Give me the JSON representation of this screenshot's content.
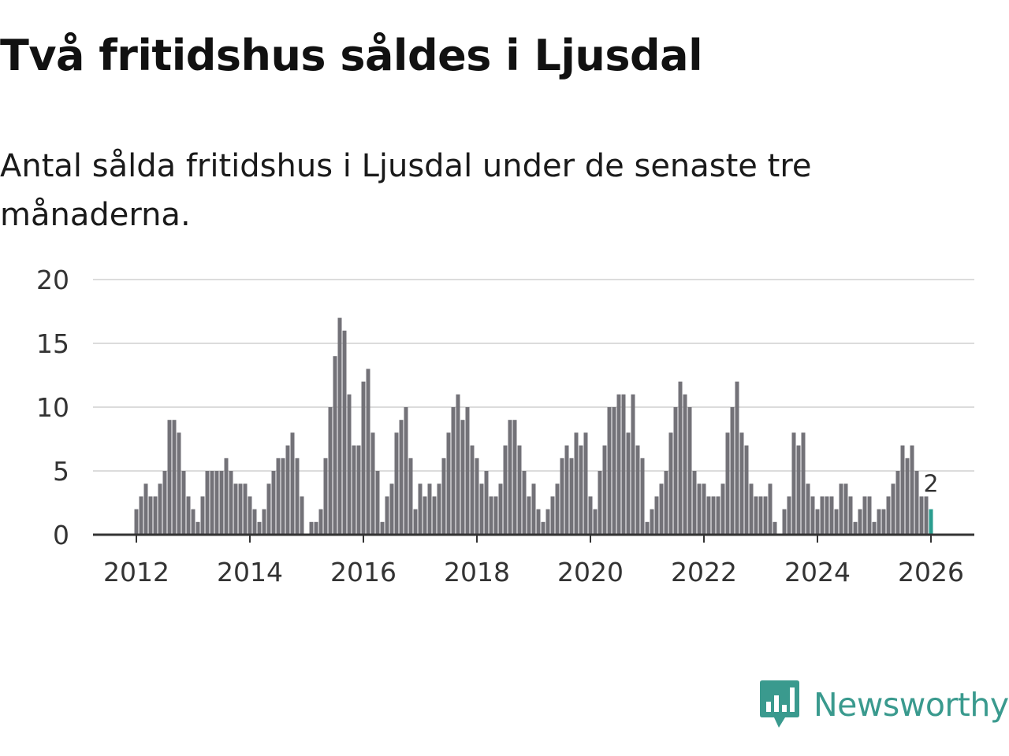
{
  "header": {
    "title": "Två fritidshus såldes i Ljusdal",
    "subtitle": "Antal sålda fritidshus i Ljusdal under de senaste tre månaderna."
  },
  "branding": {
    "logo_text": "Newsworthy",
    "logo_icon": "bar-chart-speech-bubble-icon",
    "logo_color": "#3a9a8e"
  },
  "chart_data": {
    "type": "bar",
    "title": "Två fritidshus såldes i Ljusdal",
    "subtitle": "Antal sålda fritidshus i Ljusdal under de senaste tre månaderna.",
    "xlabel": "",
    "ylabel": "",
    "x_start": "2012-01",
    "x_unit": "month",
    "xlim": [
      2012,
      2026.75
    ],
    "ylim": [
      0,
      20
    ],
    "yticks": [
      0,
      5,
      10,
      15,
      20
    ],
    "xticks": [
      2012,
      2014,
      2016,
      2018,
      2020,
      2022,
      2024,
      2026
    ],
    "grid": true,
    "bar_color": "#737278",
    "highlight_color": "#2a9d8f",
    "highlight_label": "2",
    "values": [
      2,
      3,
      4,
      3,
      3,
      4,
      5,
      9,
      9,
      8,
      5,
      3,
      2,
      1,
      3,
      5,
      5,
      5,
      5,
      6,
      5,
      4,
      4,
      4,
      3,
      2,
      1,
      2,
      4,
      5,
      6,
      6,
      7,
      8,
      6,
      3,
      0,
      1,
      1,
      2,
      6,
      10,
      14,
      17,
      16,
      11,
      7,
      7,
      12,
      13,
      8,
      5,
      1,
      3,
      4,
      8,
      9,
      10,
      6,
      2,
      4,
      3,
      4,
      3,
      4,
      6,
      8,
      10,
      11,
      9,
      10,
      7,
      6,
      4,
      5,
      3,
      3,
      4,
      7,
      9,
      9,
      7,
      5,
      3,
      4,
      2,
      1,
      2,
      3,
      4,
      6,
      7,
      6,
      8,
      7,
      8,
      3,
      2,
      5,
      7,
      10,
      10,
      11,
      11,
      8,
      11,
      7,
      6,
      1,
      2,
      3,
      4,
      5,
      8,
      10,
      12,
      11,
      10,
      5,
      4,
      4,
      3,
      3,
      3,
      4,
      8,
      10,
      12,
      8,
      7,
      4,
      3,
      3,
      3,
      4,
      1,
      0,
      2,
      3,
      8,
      7,
      8,
      4,
      3,
      2,
      3,
      3,
      3,
      2,
      4,
      4,
      3,
      1,
      2,
      3,
      3,
      1,
      2,
      2,
      3,
      4,
      5,
      7,
      6,
      7,
      5,
      3,
      3,
      2
    ]
  }
}
